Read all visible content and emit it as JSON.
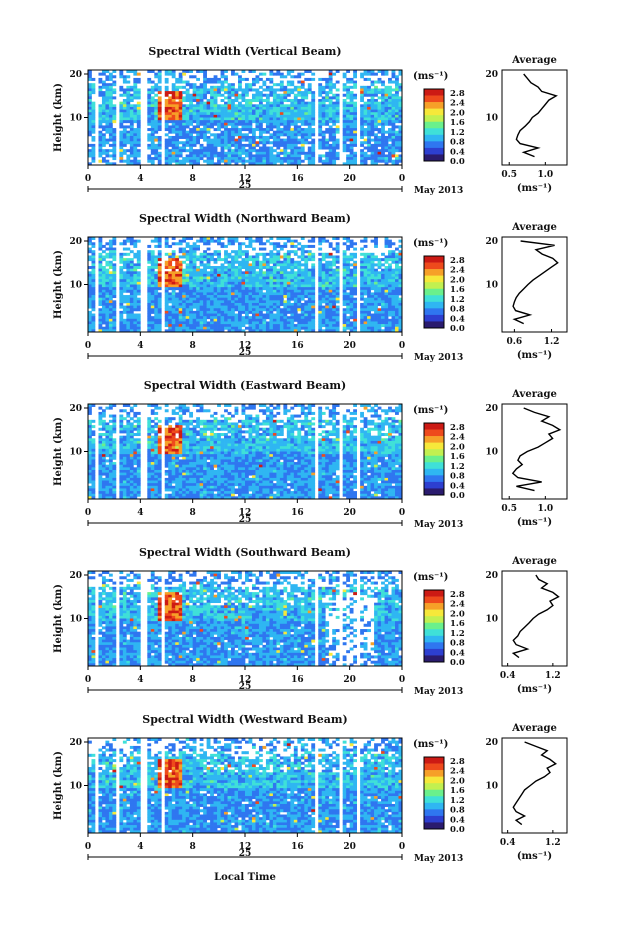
{
  "common": {
    "ylabel": "Height (km)",
    "avg_title": "Average",
    "unit": "(ms⁻¹)",
    "date_label": "May 2013",
    "day_label": "25",
    "xlabel": "Local Time",
    "x_ticks": [
      "0",
      "4",
      "8",
      "12",
      "16",
      "20",
      "0"
    ],
    "y_ticks": [
      "20",
      "10"
    ],
    "colorbar_ticks": [
      "2.8",
      "2.4",
      "2.0",
      "1.6",
      "1.2",
      "0.8",
      "0.4",
      "0.0"
    ],
    "colorbar_range": [
      0.0,
      3.0
    ],
    "colorbar_colors": [
      "#2a1b6e",
      "#2d3fd0",
      "#2f76f0",
      "#2fb6f2",
      "#3fe0d8",
      "#6af08c",
      "#c2f050",
      "#f6e83a",
      "#f6a028",
      "#ee4a1c",
      "#cc1a14"
    ]
  },
  "chart_data": [
    {
      "type": "heatmap",
      "title": "Spectral Width (Vertical Beam)",
      "x_range": [
        0,
        24
      ],
      "y_range": [
        0,
        20
      ],
      "avg_xticks": [
        "0.5",
        "1.0"
      ],
      "avg_xlim": [
        0.4,
        1.3
      ],
      "avg_profile": [
        [
          0.85,
          1
        ],
        [
          0.7,
          2
        ],
        [
          0.9,
          3
        ],
        [
          0.65,
          4
        ],
        [
          0.6,
          5
        ],
        [
          0.62,
          6
        ],
        [
          0.65,
          7
        ],
        [
          0.72,
          8
        ],
        [
          0.78,
          9
        ],
        [
          0.82,
          10
        ],
        [
          0.9,
          11
        ],
        [
          0.95,
          12
        ],
        [
          1.0,
          13
        ],
        [
          1.05,
          14
        ],
        [
          1.15,
          15
        ],
        [
          0.95,
          16
        ],
        [
          0.9,
          17
        ],
        [
          0.8,
          18
        ],
        [
          0.75,
          19
        ],
        [
          0.7,
          20
        ]
      ]
    },
    {
      "type": "heatmap",
      "title": "Spectral Width (Northward Beam)",
      "x_range": [
        0,
        24
      ],
      "y_range": [
        0,
        20
      ],
      "avg_xticks": [
        "0.6",
        "1.2"
      ],
      "avg_xlim": [
        0.4,
        1.45
      ],
      "avg_profile": [
        [
          0.75,
          1
        ],
        [
          0.6,
          2
        ],
        [
          0.85,
          3
        ],
        [
          0.62,
          4
        ],
        [
          0.58,
          5
        ],
        [
          0.6,
          6
        ],
        [
          0.63,
          7
        ],
        [
          0.68,
          8
        ],
        [
          0.75,
          9
        ],
        [
          0.82,
          10
        ],
        [
          0.9,
          11
        ],
        [
          1.0,
          12
        ],
        [
          1.1,
          13
        ],
        [
          1.2,
          14
        ],
        [
          1.3,
          15
        ],
        [
          1.22,
          16
        ],
        [
          1.05,
          17
        ],
        [
          0.95,
          18
        ],
        [
          1.25,
          19
        ],
        [
          0.7,
          20
        ]
      ]
    },
    {
      "type": "heatmap",
      "title": "Spectral Width (Eastward Beam)",
      "x_range": [
        0,
        24
      ],
      "y_range": [
        0,
        20
      ],
      "avg_xticks": [
        "0.5",
        "1.0"
      ],
      "avg_xlim": [
        0.4,
        1.3
      ],
      "avg_profile": [
        [
          0.85,
          1
        ],
        [
          0.6,
          2
        ],
        [
          0.95,
          3
        ],
        [
          0.62,
          4
        ],
        [
          0.55,
          5
        ],
        [
          0.6,
          6
        ],
        [
          0.68,
          7
        ],
        [
          0.62,
          8
        ],
        [
          0.65,
          9
        ],
        [
          0.75,
          10
        ],
        [
          0.9,
          11
        ],
        [
          1.0,
          12
        ],
        [
          1.1,
          13
        ],
        [
          1.05,
          14
        ],
        [
          1.2,
          15
        ],
        [
          1.1,
          16
        ],
        [
          0.95,
          17
        ],
        [
          1.05,
          18
        ],
        [
          0.85,
          19
        ],
        [
          0.7,
          20
        ]
      ]
    },
    {
      "type": "heatmap",
      "title": "Spectral Width (Southward Beam)",
      "x_range": [
        0,
        24
      ],
      "y_range": [
        0,
        20
      ],
      "avg_xticks": [
        "0.4",
        "1.2"
      ],
      "avg_xlim": [
        0.3,
        1.45
      ],
      "avg_profile": [
        [
          0.6,
          1
        ],
        [
          0.5,
          2
        ],
        [
          0.75,
          3
        ],
        [
          0.55,
          4
        ],
        [
          0.5,
          5
        ],
        [
          0.58,
          6
        ],
        [
          0.62,
          7
        ],
        [
          0.7,
          8
        ],
        [
          0.78,
          9
        ],
        [
          0.85,
          10
        ],
        [
          0.95,
          11
        ],
        [
          1.1,
          12
        ],
        [
          1.2,
          13
        ],
        [
          1.15,
          14
        ],
        [
          1.3,
          15
        ],
        [
          1.2,
          16
        ],
        [
          1.0,
          17
        ],
        [
          1.1,
          18
        ],
        [
          0.95,
          19
        ],
        [
          0.9,
          20
        ]
      ]
    },
    {
      "type": "heatmap",
      "title": "Spectral Width (Westward Beam)",
      "x_range": [
        0,
        24
      ],
      "y_range": [
        0,
        20
      ],
      "avg_xticks": [
        "0.4",
        "1.2"
      ],
      "avg_xlim": [
        0.3,
        1.45
      ],
      "avg_profile": [
        [
          0.65,
          1
        ],
        [
          0.55,
          2
        ],
        [
          0.7,
          3
        ],
        [
          0.55,
          4
        ],
        [
          0.5,
          5
        ],
        [
          0.55,
          6
        ],
        [
          0.6,
          7
        ],
        [
          0.65,
          8
        ],
        [
          0.7,
          9
        ],
        [
          0.8,
          10
        ],
        [
          0.9,
          11
        ],
        [
          1.05,
          12
        ],
        [
          1.15,
          13
        ],
        [
          1.1,
          14
        ],
        [
          1.25,
          15
        ],
        [
          1.15,
          16
        ],
        [
          1.0,
          17
        ],
        [
          1.1,
          18
        ],
        [
          0.9,
          19
        ],
        [
          0.7,
          20
        ]
      ]
    }
  ]
}
